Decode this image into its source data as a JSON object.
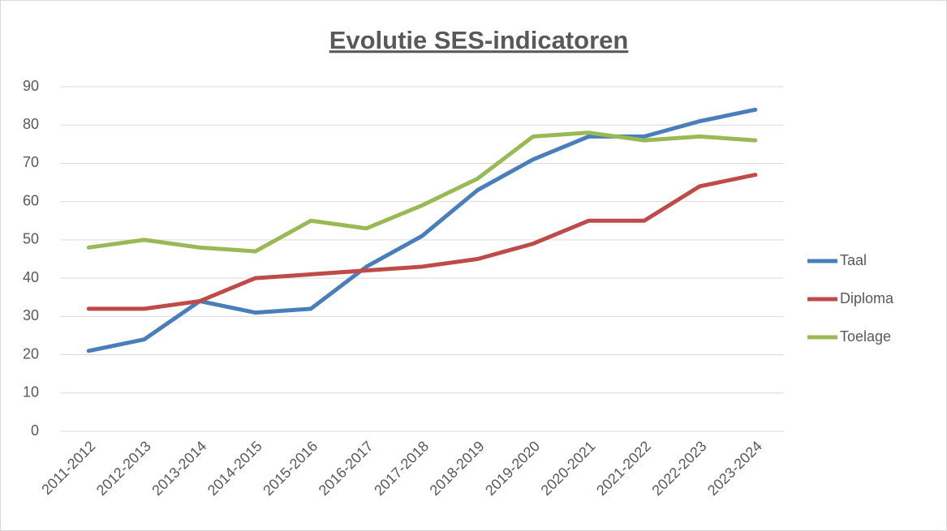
{
  "chart_data": {
    "type": "line",
    "title": "Evolutie SES-indicatoren",
    "categories": [
      "2011-2012",
      "2012-2013",
      "2013-2014",
      "2014-2015",
      "2015-2016",
      "2016-2017",
      "2017-2018",
      "2018-2019",
      "2019-2020",
      "2020-2021",
      "2021-2022",
      "2022-2023",
      "2023-2024"
    ],
    "series": [
      {
        "name": "Taal",
        "color": "#4a7ebb",
        "values": [
          21,
          24,
          34,
          31,
          32,
          43,
          51,
          63,
          71,
          77,
          77,
          81,
          84
        ]
      },
      {
        "name": "Diploma",
        "color": "#be4b48",
        "values": [
          32,
          32,
          34,
          40,
          41,
          42,
          43,
          45,
          49,
          55,
          55,
          64,
          67
        ]
      },
      {
        "name": "Toelage",
        "color": "#98b954",
        "values": [
          48,
          50,
          48,
          47,
          55,
          53,
          59,
          66,
          77,
          78,
          76,
          77,
          76
        ]
      }
    ],
    "ylim": [
      0,
      90
    ],
    "yticks": [
      0,
      10,
      20,
      30,
      40,
      50,
      60,
      70,
      80,
      90
    ],
    "grid": true,
    "legend": "right"
  }
}
